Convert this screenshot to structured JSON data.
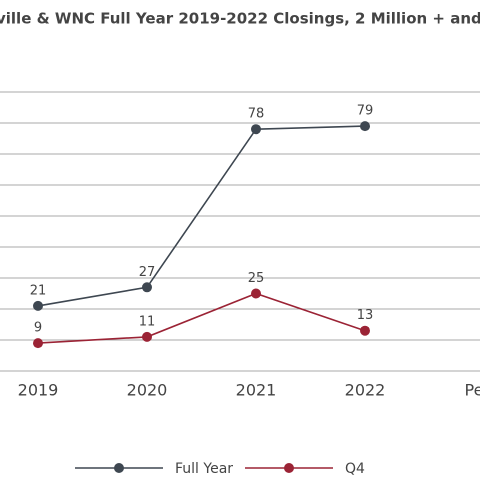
{
  "chart_data": {
    "type": "line",
    "title": "ville & WNC Full Year 2019-2022 Closings, 2 Million + and",
    "categories": [
      "2019",
      "2020",
      "2021",
      "2022",
      "Pe"
    ],
    "series": [
      {
        "name": "Full Year",
        "color": "#3e4751",
        "values": [
          21,
          27,
          78,
          79,
          null
        ]
      },
      {
        "name": "Q4",
        "color": "#9b2335",
        "values": [
          9,
          11,
          25,
          13,
          null
        ]
      }
    ],
    "ylim": [
      0,
      90
    ],
    "yticks": [
      0,
      10,
      20,
      30,
      40,
      50,
      60,
      70,
      80,
      90
    ],
    "grid": true
  }
}
